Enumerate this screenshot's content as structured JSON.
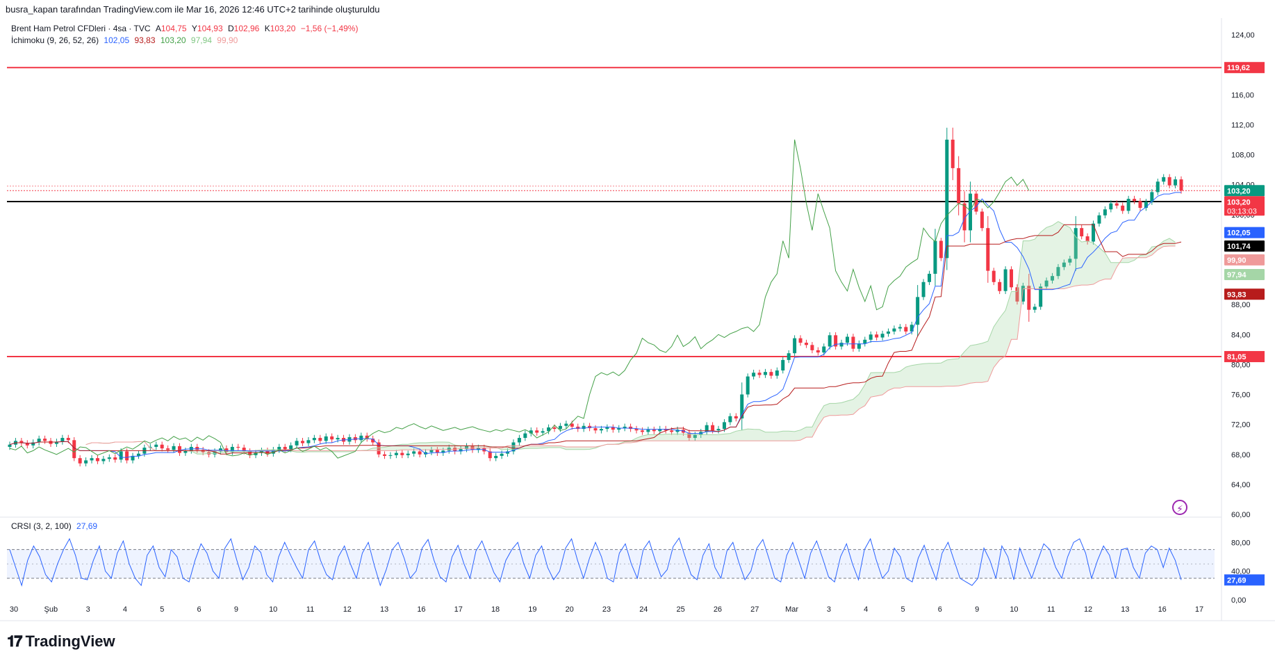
{
  "header": {
    "text": "busra_kapan tarafından TradingView.com ile Mar 16, 2026 12:46 UTC+2 tarihinde oluşturuldu"
  },
  "legend": {
    "symbol": "Brent Ham Petrol CFDleri · 4sa · TVC",
    "o_label": "A",
    "o": "104,75",
    "h_label": "Y",
    "h": "104,93",
    "l_label": "D",
    "l": "102,96",
    "c_label": "K",
    "c": "103,20",
    "change": "−1,56 (−1,49%)",
    "ichimoku_name": "İchimoku (9, 26, 52, 26)",
    "ichi_conv": "102,05",
    "ichi_base": "93,83",
    "ichi_lag": "103,20",
    "ichi_spanA": "97,94",
    "ichi_spanB": "99,90",
    "crsi_name": "CRSI (3, 2, 100)",
    "crsi_value": "27,69"
  },
  "footer": {
    "brand": "TradingView"
  },
  "colors": {
    "up": "#089981",
    "down": "#f23645",
    "conversion": "#2962ff",
    "base": "#b71c1c",
    "lagging": "#43a047",
    "cloud": "#a5d6a7",
    "hline": "#f23645",
    "crsi": "#2962ff"
  },
  "chart_data": [
    {
      "type": "candlestick",
      "title": "Brent Ham Petrol CFDleri · 4sa · TVC",
      "ylim": [
        60,
        124
      ],
      "y_ticks": [
        "124,00",
        "120,00",
        "116,00",
        "112,00",
        "108,00",
        "104,00",
        "100,00",
        "96,00",
        "92,00",
        "88,00",
        "84,00",
        "80,00",
        "76,00",
        "72,00",
        "68,00",
        "64,00",
        "60,00"
      ],
      "x_ticks": [
        "30",
        "Şub",
        "3",
        "4",
        "5",
        "6",
        "9",
        "10",
        "11",
        "12",
        "13",
        "16",
        "17",
        "18",
        "19",
        "20",
        "23",
        "24",
        "25",
        "26",
        "27",
        "Mar",
        "3",
        "4",
        "5",
        "6",
        "9",
        "10",
        "11",
        "12",
        "13",
        "16",
        "17"
      ],
      "horizontal_lines": [
        {
          "value": 119.62,
          "label": "119,62",
          "color": "#f23645"
        },
        {
          "value": 81.05,
          "label": "81,05",
          "color": "#f23645"
        },
        {
          "value": 101.74,
          "label": "101,74",
          "color": "#000000"
        }
      ],
      "price_labels": [
        {
          "value": 103.2,
          "text": "103,20",
          "color": "#089981"
        },
        {
          "value": 103.2,
          "text": "103,20",
          "sub": "03:13:03",
          "color": "#f23645"
        },
        {
          "value": 102.05,
          "text": "102,05",
          "color": "#2962ff"
        },
        {
          "value": 101.74,
          "text": "101,74",
          "color": "#000000"
        },
        {
          "value": 99.9,
          "text": "99,90",
          "color": "#ef9a9a"
        },
        {
          "value": 97.94,
          "text": "97,94",
          "color": "#a5d6a7"
        },
        {
          "value": 93.83,
          "text": "93,83",
          "color": "#b71c1c"
        }
      ],
      "close_series": [
        69.3,
        69.8,
        69.5,
        69.2,
        69.6,
        70.1,
        69.8,
        69.4,
        69.7,
        70.2,
        69.9,
        67.5,
        66.8,
        67.2,
        67.5,
        67.1,
        67.4,
        67.6,
        67.3,
        68.4,
        67.2,
        67.8,
        68.1,
        68.9,
        69.0,
        69.3,
        68.8,
        68.6,
        69.1,
        68.2,
        68.5,
        69.0,
        68.6,
        68.3,
        68.0,
        68.4,
        68.8,
        68.3,
        69.0,
        68.9,
        68.4,
        67.9,
        68.2,
        68.5,
        68.1,
        68.6,
        69.0,
        68.7,
        69.2,
        69.8,
        69.5,
        69.9,
        70.2,
        69.8,
        70.4,
        70.0,
        70.2,
        69.7,
        70.3,
        69.9,
        70.5,
        70.1,
        69.6,
        68.0,
        67.8,
        67.9,
        68.2,
        67.9,
        68.1,
        68.4,
        68.0,
        68.3,
        68.6,
        68.2,
        68.5,
        68.9,
        68.4,
        68.7,
        69.1,
        68.6,
        68.9,
        68.4,
        67.5,
        67.8,
        68.1,
        68.4,
        69.6,
        70.2,
        70.8,
        71.2,
        70.9,
        71.1,
        71.6,
        71.4,
        71.8,
        72.1,
        71.7,
        71.4,
        71.8,
        71.5,
        71.2,
        71.4,
        71.6,
        71.3,
        71.5,
        71.7,
        71.4,
        71.2,
        71.0,
        71.3,
        71.1,
        71.4,
        71.2,
        71.0,
        71.3,
        70.9,
        70.2,
        70.6,
        71.0,
        71.9,
        71.2,
        71.4,
        72.3,
        73.1,
        72.8,
        76.0,
        78.4,
        78.9,
        78.6,
        79.0,
        78.5,
        79.2,
        80.6,
        81.5,
        83.5,
        82.9,
        82.6,
        81.9,
        81.6,
        82.4,
        83.9,
        82.4,
        82.9,
        83.7,
        82.1,
        82.8,
        83.3,
        84.0,
        83.6,
        84.1,
        84.4,
        84.8,
        85.0,
        84.4,
        85.3,
        89.0,
        91.0,
        92.1,
        96.5,
        94.2,
        110.0,
        106.2,
        101.5,
        97.9,
        102.8,
        100.4,
        98.2,
        92.5,
        91.0,
        89.8,
        92.7,
        90.3,
        88.4,
        90.5,
        87.3,
        87.7,
        90.4,
        91.2,
        91.8,
        93.0,
        93.6,
        94.1,
        98.2,
        97.1,
        96.4,
        98.8,
        99.9,
        100.7,
        101.5,
        101.2,
        100.5,
        102.1,
        101.8,
        100.9,
        101.7,
        103.0,
        104.4,
        105.0,
        103.9,
        104.7,
        103.2
      ]
    },
    {
      "type": "line",
      "title": "CRSI (3, 2, 100)",
      "ylim": [
        0,
        90
      ],
      "y_ticks": [
        "80,00",
        "40,00",
        "0,00"
      ],
      "bands": [
        70,
        30
      ],
      "last_value": 27.69,
      "values": [
        70,
        45,
        20,
        55,
        75,
        60,
        35,
        25,
        50,
        70,
        85,
        62,
        30,
        28,
        55,
        75,
        40,
        30,
        65,
        82,
        50,
        30,
        20,
        62,
        75,
        45,
        32,
        70,
        60,
        30,
        25,
        55,
        78,
        65,
        40,
        30,
        72,
        85,
        55,
        28,
        45,
        75,
        66,
        35,
        25,
        60,
        80,
        62,
        45,
        30,
        70,
        82,
        55,
        35,
        28,
        60,
        75,
        50,
        30,
        65,
        80,
        48,
        20,
        42,
        70,
        80,
        58,
        30,
        40,
        72,
        84,
        55,
        32,
        25,
        60,
        76,
        50,
        30,
        68,
        82,
        60,
        38,
        25,
        55,
        70,
        80,
        50,
        30,
        62,
        75,
        45,
        28,
        40,
        72,
        85,
        55,
        30,
        58,
        80,
        60,
        30,
        25,
        65,
        78,
        50,
        30,
        70,
        82,
        55,
        32,
        42,
        74,
        86,
        60,
        35,
        28,
        62,
        78,
        45,
        30,
        68,
        80,
        52,
        28,
        40,
        72,
        84,
        58,
        30,
        25,
        62,
        80,
        55,
        30,
        65,
        82,
        58,
        32,
        25,
        60,
        78,
        50,
        28,
        70,
        85,
        55,
        30,
        40,
        72,
        60,
        30,
        25,
        58,
        76,
        50,
        28,
        65,
        80,
        55,
        30,
        25,
        20,
        30,
        72,
        55,
        30,
        75,
        60,
        28,
        72,
        50,
        30,
        55,
        78,
        70,
        45,
        30,
        60,
        80,
        85,
        65,
        30,
        55,
        75,
        62,
        30,
        70,
        72,
        45,
        30,
        65,
        75,
        70,
        45,
        72,
        55,
        27.69
      ]
    }
  ]
}
